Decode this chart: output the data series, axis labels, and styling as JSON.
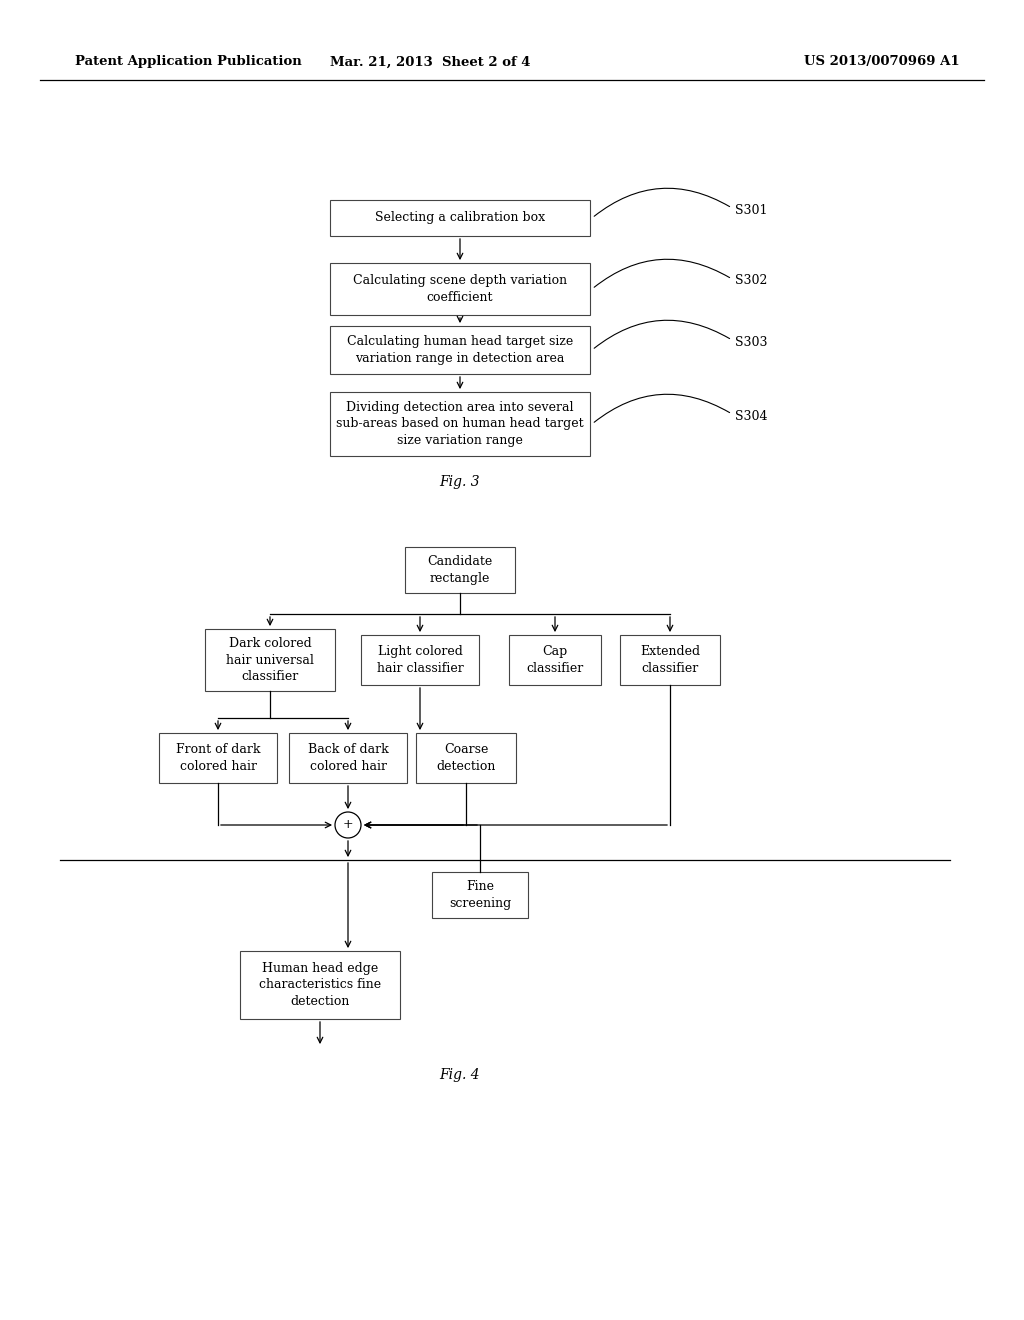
{
  "background_color": "#ffffff",
  "header_left": "Patent Application Publication",
  "header_center": "Mar. 21, 2013  Sheet 2 of 4",
  "header_right": "US 2013/0070969 A1",
  "fig3_label": "Fig. 3",
  "fig4_label": "Fig. 4"
}
